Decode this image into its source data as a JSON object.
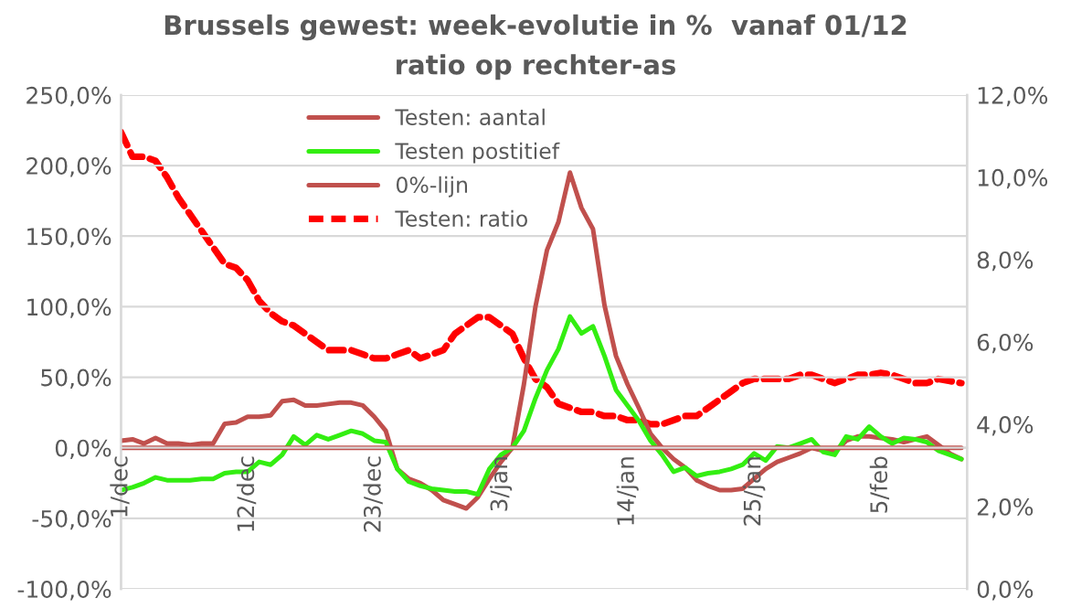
{
  "chart_data": {
    "type": "line",
    "title": "Brussels gewest: week-evolutie in %  vanaf 01/12",
    "subtitle": "ratio op rechter-as",
    "categories": [
      "1/dec",
      null,
      null,
      null,
      null,
      null,
      null,
      null,
      null,
      null,
      null,
      "12/dec",
      null,
      null,
      null,
      null,
      null,
      null,
      null,
      null,
      null,
      null,
      "23/dec",
      null,
      null,
      null,
      null,
      null,
      null,
      null,
      null,
      null,
      null,
      "3/jan",
      null,
      null,
      null,
      null,
      null,
      null,
      null,
      null,
      null,
      null,
      "14/jan",
      null,
      null,
      null,
      null,
      null,
      null,
      null,
      null,
      null,
      null,
      "25/jan",
      null,
      null,
      null,
      null,
      null,
      null,
      null,
      null,
      null,
      null,
      "5/feb",
      null,
      null,
      null,
      null,
      null,
      null,
      null
    ],
    "series": [
      {
        "name": "Testen: aantal",
        "color": "#c0504d",
        "line_style": "solid",
        "values": [
          5,
          6,
          3,
          7,
          3,
          3,
          2,
          3,
          3,
          17,
          18,
          22,
          22,
          23,
          33,
          34,
          30,
          30,
          31,
          32,
          32,
          30,
          22,
          12,
          -15,
          -22,
          -25,
          -30,
          -37,
          -40,
          -43,
          -35,
          -22,
          -10,
          0,
          45,
          100,
          140,
          160,
          195,
          170,
          155,
          101,
          65,
          45,
          28,
          10,
          0,
          -8,
          -14,
          -23,
          -27,
          -30,
          -30,
          -29,
          -22,
          -15,
          -10,
          -7,
          -4,
          0,
          -2,
          -3,
          5,
          8,
          8,
          7,
          6,
          4,
          6,
          8,
          2,
          -4,
          -8
        ]
      },
      {
        "name": "Testen postitief",
        "color": "#33ee11",
        "line_style": "solid",
        "values": [
          -30,
          -28,
          -25,
          -21,
          -23,
          -23,
          -23,
          -22,
          -22,
          -18,
          -17,
          -17,
          -10,
          -12,
          -5,
          8,
          2,
          9,
          6,
          9,
          12,
          10,
          5,
          4,
          -15,
          -24,
          -27,
          -29,
          -30,
          -31,
          -31,
          -33,
          -15,
          -5,
          0,
          12,
          35,
          55,
          70,
          93,
          81,
          86,
          65,
          41,
          30,
          19,
          5,
          -5,
          -17,
          -14,
          -20,
          -18,
          -17,
          -15,
          -12,
          -4,
          -9,
          1,
          0,
          3,
          6,
          -3,
          -5,
          8,
          6,
          15,
          8,
          3,
          7,
          6,
          4,
          -2,
          -5,
          -8
        ]
      },
      {
        "name": "0%-lijn",
        "color": "#c0504d",
        "line_style": "solid",
        "values": [
          0,
          0,
          0,
          0,
          0,
          0,
          0,
          0,
          0,
          0,
          0,
          0,
          0,
          0,
          0,
          0,
          0,
          0,
          0,
          0,
          0,
          0,
          0,
          0,
          0,
          0,
          0,
          0,
          0,
          0,
          0,
          0,
          0,
          0,
          0,
          0,
          0,
          0,
          0,
          0,
          0,
          0,
          0,
          0,
          0,
          0,
          0,
          0,
          0,
          0,
          0,
          0,
          0,
          0,
          0,
          0,
          0,
          0,
          0,
          0,
          0,
          0,
          0,
          0,
          0,
          0,
          0,
          0,
          0,
          0,
          0,
          0,
          0,
          0
        ]
      },
      {
        "name": "Testen: ratio",
        "color": "#ff0000",
        "line_style": "dashed",
        "axis": "y2",
        "values": [
          11.1,
          10.5,
          10.5,
          10.4,
          10.0,
          9.5,
          9.1,
          8.7,
          8.3,
          7.9,
          7.8,
          7.5,
          7.0,
          6.7,
          6.5,
          6.4,
          6.2,
          6.0,
          5.8,
          5.8,
          5.8,
          5.7,
          5.6,
          5.6,
          5.7,
          5.8,
          5.6,
          5.7,
          5.8,
          6.2,
          6.4,
          6.6,
          6.6,
          6.4,
          6.2,
          5.6,
          5.1,
          4.9,
          4.5,
          4.4,
          4.3,
          4.3,
          4.2,
          4.2,
          4.1,
          4.1,
          4.0,
          4.0,
          4.1,
          4.2,
          4.2,
          4.4,
          4.6,
          4.8,
          5.0,
          5.1,
          5.1,
          5.1,
          5.1,
          5.2,
          5.2,
          5.1,
          5.0,
          5.1,
          5.2,
          5.2,
          5.25,
          5.2,
          5.1,
          5.0,
          5.0,
          5.1,
          5.05,
          5.0
        ]
      }
    ],
    "ylim": [
      -100,
      250
    ],
    "yticks": [
      {
        "value": -100,
        "label": "-100,0%"
      },
      {
        "value": -50,
        "label": "-50,0%"
      },
      {
        "value": 0,
        "label": "0,0%"
      },
      {
        "value": 50,
        "label": "50,0%"
      },
      {
        "value": 100,
        "label": "100,0%"
      },
      {
        "value": 150,
        "label": "150,0%"
      },
      {
        "value": 200,
        "label": "200,0%"
      },
      {
        "value": 250,
        "label": "250,0%"
      }
    ],
    "y2lim": [
      0,
      12
    ],
    "y2ticks": [
      {
        "value": 0,
        "label": "0,0%"
      },
      {
        "value": 2,
        "label": "2,0%"
      },
      {
        "value": 4,
        "label": "4,0%"
      },
      {
        "value": 6,
        "label": "6,0%"
      },
      {
        "value": 8,
        "label": "8,0%"
      },
      {
        "value": 10,
        "label": "10,0%"
      },
      {
        "value": 12,
        "label": "12,0%"
      }
    ],
    "grid": "y",
    "legend": "top",
    "marker": "none"
  }
}
